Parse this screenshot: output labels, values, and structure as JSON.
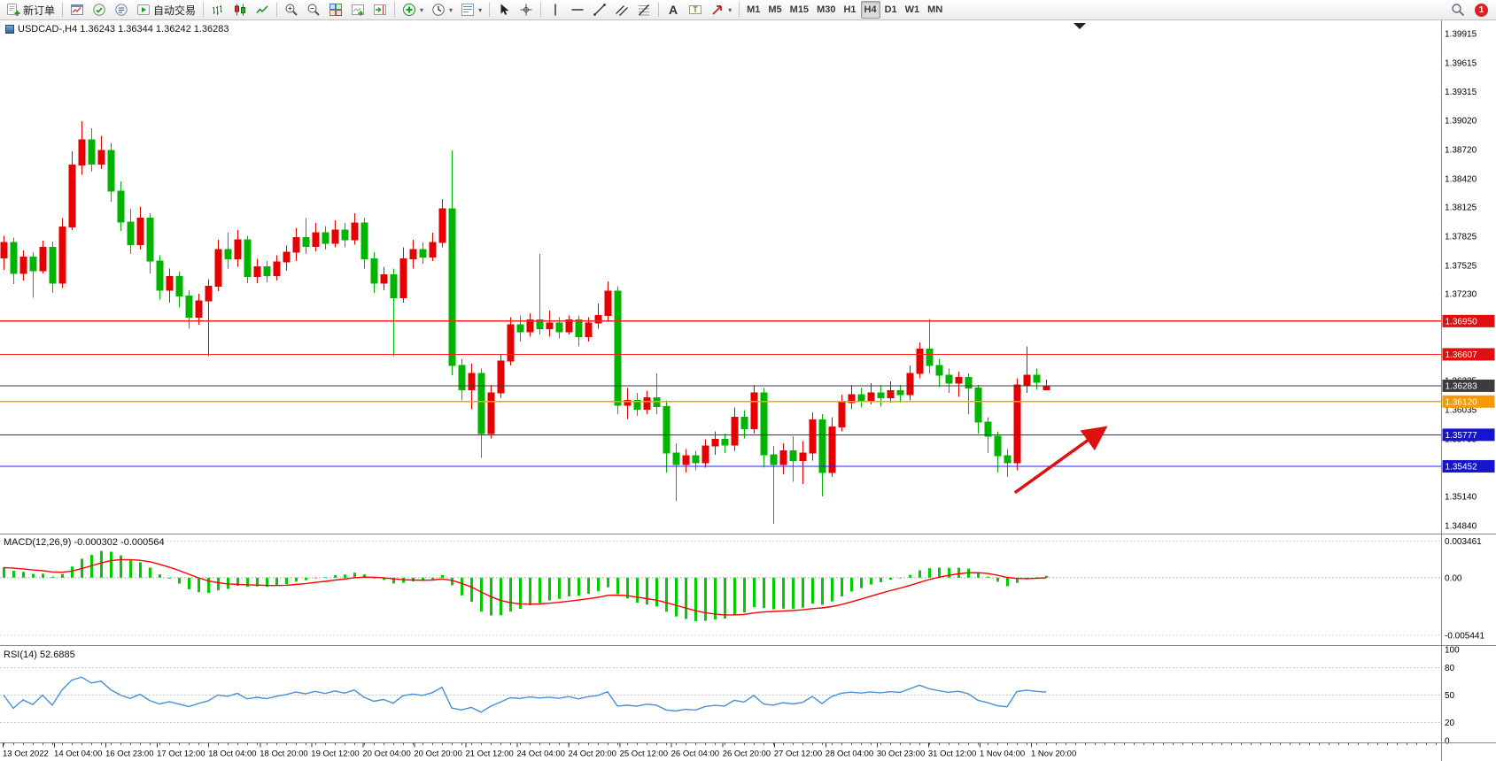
{
  "app": {
    "name": "MetaTrader 4"
  },
  "toolbar": {
    "items": [
      {
        "type": "button",
        "name": "new-order-button",
        "icon": "new-order-icon",
        "label": "新订单"
      },
      {
        "type": "sep"
      },
      {
        "type": "button",
        "name": "new-chart-button",
        "icon": "new-chart-icon"
      },
      {
        "type": "button",
        "name": "profiles-button",
        "icon": "profiles-icon"
      },
      {
        "type": "button",
        "name": "data-window-button",
        "icon": "data-window-icon"
      },
      {
        "type": "button",
        "name": "autotrading-button",
        "icon": "autotrading-icon",
        "label": "自动交易"
      },
      {
        "type": "sep"
      },
      {
        "type": "button",
        "name": "bar-chart-button",
        "icon": "bar-chart-icon"
      },
      {
        "type": "button",
        "name": "candlestick-button",
        "icon": "candlestick-icon"
      },
      {
        "type": "button",
        "name": "line-chart-button",
        "icon": "line-chart-icon"
      },
      {
        "type": "sep"
      },
      {
        "type": "button",
        "name": "zoom-in-button",
        "icon": "zoom-in-icon"
      },
      {
        "type": "button",
        "name": "zoom-out-button",
        "icon": "zoom-out-icon"
      },
      {
        "type": "button",
        "name": "tile-windows-button",
        "icon": "tile-windows-icon"
      },
      {
        "type": "button",
        "name": "auto-scroll-button",
        "icon": "auto-scroll-icon"
      },
      {
        "type": "button",
        "name": "chart-shift-button",
        "icon": "chart-shift-icon"
      },
      {
        "type": "sep"
      },
      {
        "type": "button",
        "name": "indicators-button",
        "icon": "indicators-icon",
        "caret": true
      },
      {
        "type": "button",
        "name": "periods-button",
        "icon": "periods-icon",
        "caret": true
      },
      {
        "type": "button",
        "name": "templates-button",
        "icon": "templates-icon",
        "caret": true
      },
      {
        "type": "sep"
      },
      {
        "type": "button",
        "name": "cursor-button",
        "icon": "cursor-icon"
      },
      {
        "type": "button",
        "name": "crosshair-button",
        "icon": "crosshair-icon"
      },
      {
        "type": "sep"
      },
      {
        "type": "button",
        "name": "vertical-line-button",
        "icon": "vertical-line-icon"
      },
      {
        "type": "button",
        "name": "horizontal-line-button",
        "icon": "horizontal-line-icon"
      },
      {
        "type": "button",
        "name": "trendline-button",
        "icon": "trendline-icon"
      },
      {
        "type": "button",
        "name": "channel-button",
        "icon": "channel-icon"
      },
      {
        "type": "button",
        "name": "fibonacci-button",
        "icon": "fibonacci-icon"
      },
      {
        "type": "sep"
      },
      {
        "type": "button",
        "name": "text-button",
        "icon": "text-icon"
      },
      {
        "type": "button",
        "name": "text-label-button",
        "icon": "text-label-icon"
      },
      {
        "type": "button",
        "name": "arrows-button",
        "icon": "arrows-icon",
        "caret": true
      },
      {
        "type": "sep"
      },
      {
        "type": "tf",
        "name": "tf-m1",
        "label": "M1"
      },
      {
        "type": "tf",
        "name": "tf-m5",
        "label": "M5"
      },
      {
        "type": "tf",
        "name": "tf-m15",
        "label": "M15"
      },
      {
        "type": "tf",
        "name": "tf-m30",
        "label": "M30"
      },
      {
        "type": "tf",
        "name": "tf-h1",
        "label": "H1"
      },
      {
        "type": "tf",
        "name": "tf-h4",
        "label": "H4",
        "active": true
      },
      {
        "type": "tf",
        "name": "tf-d1",
        "label": "D1"
      },
      {
        "type": "tf",
        "name": "tf-w1",
        "label": "W1"
      },
      {
        "type": "tf",
        "name": "tf-mn",
        "label": "MN"
      },
      {
        "type": "spacer"
      },
      {
        "type": "button",
        "name": "search-button",
        "icon": "search-icon"
      },
      {
        "type": "badge",
        "name": "notification-badge",
        "label": "1"
      }
    ]
  },
  "chart_data": {
    "type": "candlestick",
    "title": "USDCAD-,H4 1.36243 1.36344 1.36242 1.36283",
    "symbol": "USDCAD-",
    "timeframe": "H4",
    "ohlc": {
      "open": "1.36243",
      "high": "1.36344",
      "low": "1.36242",
      "close": "1.36283"
    },
    "up_color": "#e60000",
    "down_color": "#00b400",
    "price_axis": {
      "ymin": 1.3468,
      "ymax": 1.4001,
      "labels": [
        "1.39915",
        "1.39615",
        "1.39315",
        "1.39020",
        "1.38720",
        "1.38420",
        "1.38125",
        "1.37825",
        "1.37525",
        "1.37230",
        "1.36930",
        "1.36630",
        "1.36335",
        "1.36035",
        "1.35735",
        "1.35440",
        "1.35140",
        "1.34840"
      ]
    },
    "levels": [
      {
        "name": "resistance-line-1",
        "price": 1.3695,
        "badge": "1.36950",
        "color": "#ff2020",
        "badge_color": "#e01010"
      },
      {
        "name": "resistance-line-2",
        "price": 1.36607,
        "badge": "1.36607",
        "color": "#ff2020",
        "badge_color": "#e01010"
      },
      {
        "name": "bid-price-line",
        "price": 1.36283,
        "badge": "1.36283",
        "color": "#3c3c3c",
        "badge_color": "#3c3c3c"
      },
      {
        "name": "pivot-line",
        "price": 1.3612,
        "badge": "1.36120",
        "color": "#ffa000",
        "badge_color": "#f59a00"
      },
      {
        "name": "support-line-1",
        "price": 1.35777,
        "badge": "1.35777",
        "color": "#2020ff",
        "badge_color": "#1515d0"
      },
      {
        "name": "support-line-2",
        "price": 1.35452,
        "badge": "1.35452",
        "color": "#2020ff",
        "badge_color": "#1515d0"
      }
    ],
    "arrow": {
      "from_index": 103.8,
      "from_price": 1.3518,
      "to_index": 112.8,
      "to_price": 1.3583,
      "color": "#e01010"
    },
    "candles": [
      [
        1.376,
        1.3783,
        1.3748,
        1.3776
      ],
      [
        1.3776,
        1.3781,
        1.3733,
        1.3744
      ],
      [
        1.3744,
        1.3768,
        1.3737,
        1.3761
      ],
      [
        1.3761,
        1.3766,
        1.3719,
        1.3747
      ],
      [
        1.3747,
        1.3778,
        1.3744,
        1.3771
      ],
      [
        1.3771,
        1.3777,
        1.3724,
        1.3734
      ],
      [
        1.3734,
        1.3801,
        1.3729,
        1.3792
      ],
      [
        1.3792,
        1.387,
        1.3789,
        1.3856
      ],
      [
        1.3856,
        1.3901,
        1.3846,
        1.3882
      ],
      [
        1.3882,
        1.3894,
        1.3849,
        1.3857
      ],
      [
        1.3857,
        1.3886,
        1.3852,
        1.3871
      ],
      [
        1.3871,
        1.3879,
        1.3818,
        1.3829
      ],
      [
        1.3829,
        1.3839,
        1.3788,
        1.3797
      ],
      [
        1.3797,
        1.3811,
        1.3764,
        1.3774
      ],
      [
        1.3774,
        1.3813,
        1.3769,
        1.3801
      ],
      [
        1.3801,
        1.3806,
        1.3744,
        1.3757
      ],
      [
        1.3757,
        1.3763,
        1.3717,
        1.3727
      ],
      [
        1.3727,
        1.3749,
        1.3714,
        1.3741
      ],
      [
        1.3741,
        1.3746,
        1.3709,
        1.3721
      ],
      [
        1.3721,
        1.3727,
        1.3687,
        1.3699
      ],
      [
        1.3699,
        1.3723,
        1.3691,
        1.3716
      ],
      [
        1.3716,
        1.3738,
        1.3659,
        1.3731
      ],
      [
        1.3731,
        1.3779,
        1.3726,
        1.3769
      ],
      [
        1.3769,
        1.3786,
        1.3749,
        1.3759
      ],
      [
        1.3759,
        1.3789,
        1.3751,
        1.3779
      ],
      [
        1.3779,
        1.3783,
        1.3734,
        1.3741
      ],
      [
        1.3741,
        1.3759,
        1.3734,
        1.3751
      ],
      [
        1.3751,
        1.3757,
        1.3735,
        1.3742
      ],
      [
        1.3742,
        1.3763,
        1.3737,
        1.3756
      ],
      [
        1.3756,
        1.3773,
        1.3747,
        1.3766
      ],
      [
        1.3766,
        1.3791,
        1.3757,
        1.3781
      ],
      [
        1.3781,
        1.3801,
        1.3764,
        1.3772
      ],
      [
        1.3772,
        1.3796,
        1.3767,
        1.3786
      ],
      [
        1.3786,
        1.3793,
        1.3769,
        1.3775
      ],
      [
        1.3775,
        1.3799,
        1.3771,
        1.3789
      ],
      [
        1.3789,
        1.3796,
        1.3771,
        1.3779
      ],
      [
        1.3779,
        1.3806,
        1.3774,
        1.3796
      ],
      [
        1.3796,
        1.3801,
        1.3749,
        1.3759
      ],
      [
        1.3759,
        1.3766,
        1.3724,
        1.3734
      ],
      [
        1.3734,
        1.3751,
        1.3727,
        1.3743
      ],
      [
        1.3743,
        1.3749,
        1.3659,
        1.3719
      ],
      [
        1.3719,
        1.3771,
        1.3714,
        1.3759
      ],
      [
        1.3759,
        1.3779,
        1.3749,
        1.3769
      ],
      [
        1.3769,
        1.3776,
        1.3754,
        1.3761
      ],
      [
        1.3761,
        1.3786,
        1.3757,
        1.3776
      ],
      [
        1.3776,
        1.3821,
        1.3771,
        1.3811
      ],
      [
        1.3811,
        1.3871,
        1.3639,
        1.3649
      ],
      [
        1.3649,
        1.3656,
        1.3613,
        1.3624
      ],
      [
        1.3624,
        1.3651,
        1.3604,
        1.3641
      ],
      [
        1.3641,
        1.3646,
        1.3554,
        1.3579
      ],
      [
        1.3579,
        1.3629,
        1.3574,
        1.3621
      ],
      [
        1.3621,
        1.3661,
        1.3616,
        1.3654
      ],
      [
        1.3654,
        1.3699,
        1.3649,
        1.3691
      ],
      [
        1.3691,
        1.3701,
        1.3674,
        1.3684
      ],
      [
        1.3684,
        1.3703,
        1.3679,
        1.3696
      ],
      [
        1.3696,
        1.3764,
        1.3681,
        1.3687
      ],
      [
        1.3687,
        1.3706,
        1.3679,
        1.3693
      ],
      [
        1.3693,
        1.3699,
        1.3677,
        1.3684
      ],
      [
        1.3684,
        1.3701,
        1.3681,
        1.3696
      ],
      [
        1.3696,
        1.3701,
        1.3669,
        1.3679
      ],
      [
        1.3679,
        1.3699,
        1.3674,
        1.3693
      ],
      [
        1.3693,
        1.3713,
        1.3687,
        1.3701
      ],
      [
        1.3701,
        1.3736,
        1.3694,
        1.3726
      ],
      [
        1.3726,
        1.3731,
        1.3599,
        1.3608
      ],
      [
        1.3608,
        1.3626,
        1.3594,
        1.3613
      ],
      [
        1.3613,
        1.3621,
        1.3597,
        1.3604
      ],
      [
        1.3604,
        1.3623,
        1.3599,
        1.3616
      ],
      [
        1.3616,
        1.3641,
        1.3599,
        1.3607
      ],
      [
        1.3607,
        1.3613,
        1.3539,
        1.3559
      ],
      [
        1.3559,
        1.3569,
        1.3509,
        1.3547
      ],
      [
        1.3547,
        1.3563,
        1.3539,
        1.3556
      ],
      [
        1.3556,
        1.3561,
        1.3541,
        1.3549
      ],
      [
        1.3549,
        1.3573,
        1.3544,
        1.3566
      ],
      [
        1.3566,
        1.3581,
        1.3557,
        1.3573
      ],
      [
        1.3573,
        1.3579,
        1.3559,
        1.3567
      ],
      [
        1.3567,
        1.3606,
        1.3561,
        1.3596
      ],
      [
        1.3596,
        1.3603,
        1.3574,
        1.3584
      ],
      [
        1.3584,
        1.3629,
        1.3579,
        1.3621
      ],
      [
        1.3621,
        1.3626,
        1.3544,
        1.3557
      ],
      [
        1.3557,
        1.3566,
        1.3486,
        1.3547
      ],
      [
        1.3547,
        1.3569,
        1.3537,
        1.3561
      ],
      [
        1.3561,
        1.3576,
        1.3529,
        1.3551
      ],
      [
        1.3551,
        1.3571,
        1.3527,
        1.3559
      ],
      [
        1.3559,
        1.3601,
        1.3551,
        1.3593
      ],
      [
        1.3593,
        1.3599,
        1.3514,
        1.3539
      ],
      [
        1.3539,
        1.3596,
        1.3534,
        1.3586
      ],
      [
        1.3586,
        1.3619,
        1.3581,
        1.3611
      ],
      [
        1.3611,
        1.3629,
        1.3604,
        1.3619
      ],
      [
        1.3619,
        1.3626,
        1.3606,
        1.3613
      ],
      [
        1.3613,
        1.3631,
        1.3609,
        1.3621
      ],
      [
        1.3621,
        1.3629,
        1.3607,
        1.3616
      ],
      [
        1.3616,
        1.3633,
        1.3611,
        1.3623
      ],
      [
        1.3623,
        1.3629,
        1.3611,
        1.3619
      ],
      [
        1.3619,
        1.3649,
        1.3613,
        1.3641
      ],
      [
        1.3641,
        1.3673,
        1.3636,
        1.3666
      ],
      [
        1.3666,
        1.3697,
        1.3641,
        1.3649
      ],
      [
        1.3649,
        1.3656,
        1.3627,
        1.3639
      ],
      [
        1.3639,
        1.3646,
        1.3621,
        1.3631
      ],
      [
        1.3631,
        1.3643,
        1.3617,
        1.3637
      ],
      [
        1.3637,
        1.3641,
        1.3599,
        1.3626
      ],
      [
        1.3626,
        1.3629,
        1.3579,
        1.3591
      ],
      [
        1.3591,
        1.3596,
        1.3559,
        1.3576
      ],
      [
        1.3576,
        1.3581,
        1.3539,
        1.3556
      ],
      [
        1.3556,
        1.3563,
        1.3534,
        1.3549
      ],
      [
        1.3549,
        1.3636,
        1.3541,
        1.3629
      ],
      [
        1.3629,
        1.3669,
        1.3621,
        1.3639
      ],
      [
        1.3639,
        1.3646,
        1.3624,
        1.3632
      ],
      [
        1.36243,
        1.36344,
        1.36242,
        1.36283
      ]
    ],
    "time_labels": [
      "13 Oct 2022",
      "14 Oct 04:00",
      "16 Oct 23:00",
      "17 Oct 12:00",
      "18 Oct 04:00",
      "18 Oct 20:00",
      "19 Oct 12:00",
      "20 Oct 04:00",
      "20 Oct 20:00",
      "21 Oct 12:00",
      "24 Oct 04:00",
      "24 Oct 20:00",
      "25 Oct 12:00",
      "26 Oct 04:00",
      "26 Oct 20:00",
      "27 Oct 12:00",
      "28 Oct 04:00",
      "30 Oct 23:00",
      "31 Oct 12:00",
      "1 Nov 04:00",
      "1 Nov 20:00"
    ],
    "macd": {
      "label": "MACD(12,26,9) -0.000302 -0.000564",
      "params": [
        12,
        26,
        9
      ],
      "values": [
        -0.000302,
        -0.000564
      ],
      "axis_labels": [
        "0.003461",
        "0.00",
        "-0.005441"
      ],
      "hist_color": "#00cc00",
      "signal_color": "#ff0000"
    },
    "rsi": {
      "label": "RSI(14) 52.6885",
      "period": 14,
      "value": 52.6885,
      "axis_labels": [
        "100",
        "80",
        "50",
        "20",
        "0"
      ],
      "grid_levels": [
        80,
        50,
        20
      ],
      "color": "#4a8fd4"
    }
  }
}
